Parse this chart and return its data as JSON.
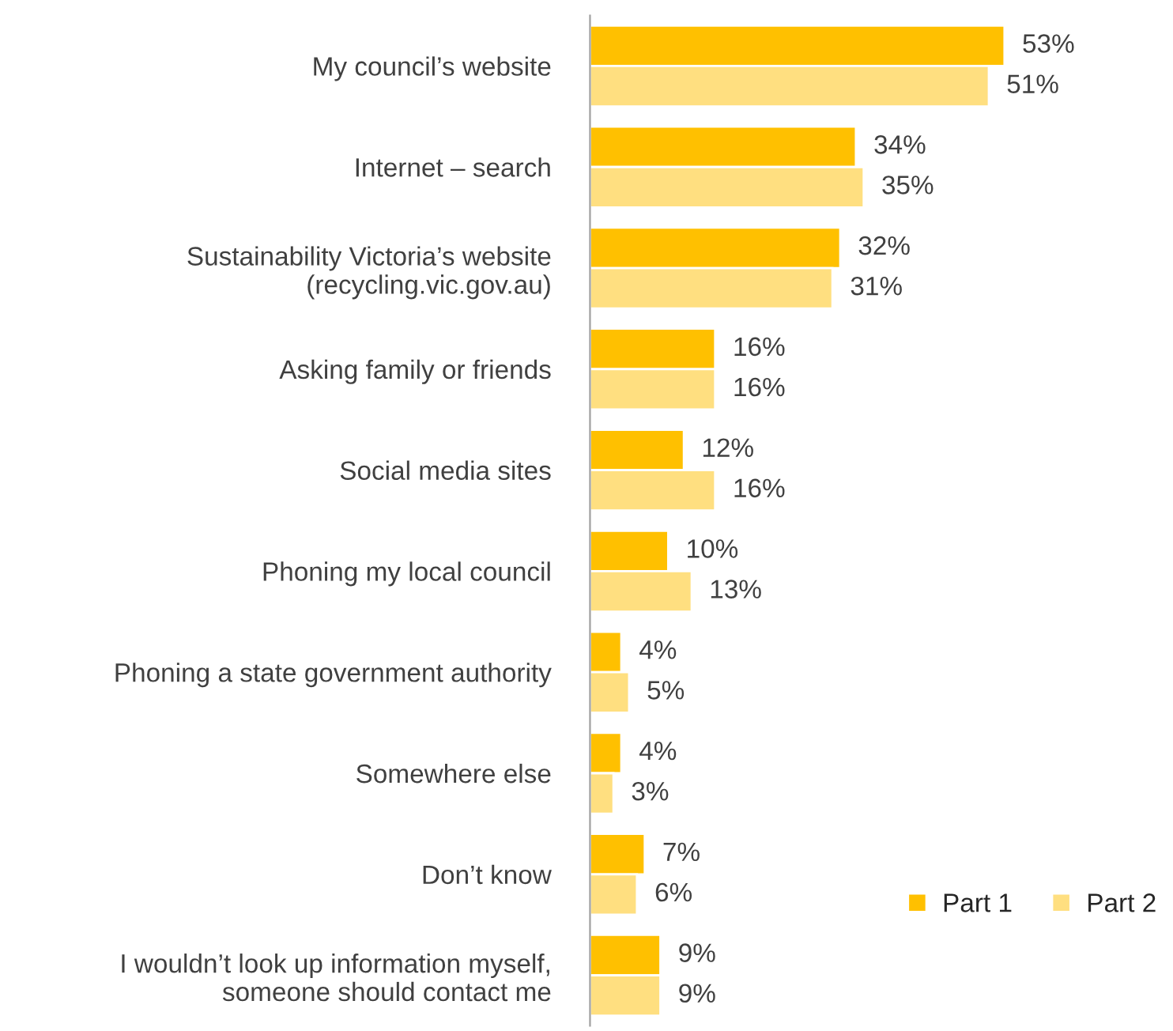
{
  "chart_data": {
    "type": "bar",
    "orientation": "horizontal",
    "categories": [
      "My council’s website",
      "Internet – search",
      "Sustainability Victoria’s website\n(recycling.vic.gov.au)",
      "Asking family or friends",
      "Social media sites",
      "Phoning my local council",
      "Phoning a state government authority",
      "Somewhere else",
      "Don’t know",
      "I wouldn’t look up information myself,\nsomeone should contact me"
    ],
    "series": [
      {
        "name": "Part 1",
        "color": "#ffc000",
        "values": [
          53,
          34,
          32,
          16,
          12,
          10,
          4,
          4,
          7,
          9
        ],
        "value_labels": [
          "53%",
          "34%",
          "32%",
          "16%",
          "12%",
          "10%",
          "4%",
          "4%",
          "7%",
          "9%"
        ]
      },
      {
        "name": "Part 2",
        "color": "#ffdf80",
        "values": [
          51,
          35,
          31,
          16,
          16,
          13,
          5,
          3,
          6,
          9
        ],
        "value_labels": [
          "51%",
          "35%",
          "31%",
          "16%",
          "16%",
          "13%",
          "5%",
          "3%",
          "6%",
          "9%"
        ]
      }
    ],
    "tick_labels": "y",
    "legend": "bottom right",
    "grid": false
  }
}
